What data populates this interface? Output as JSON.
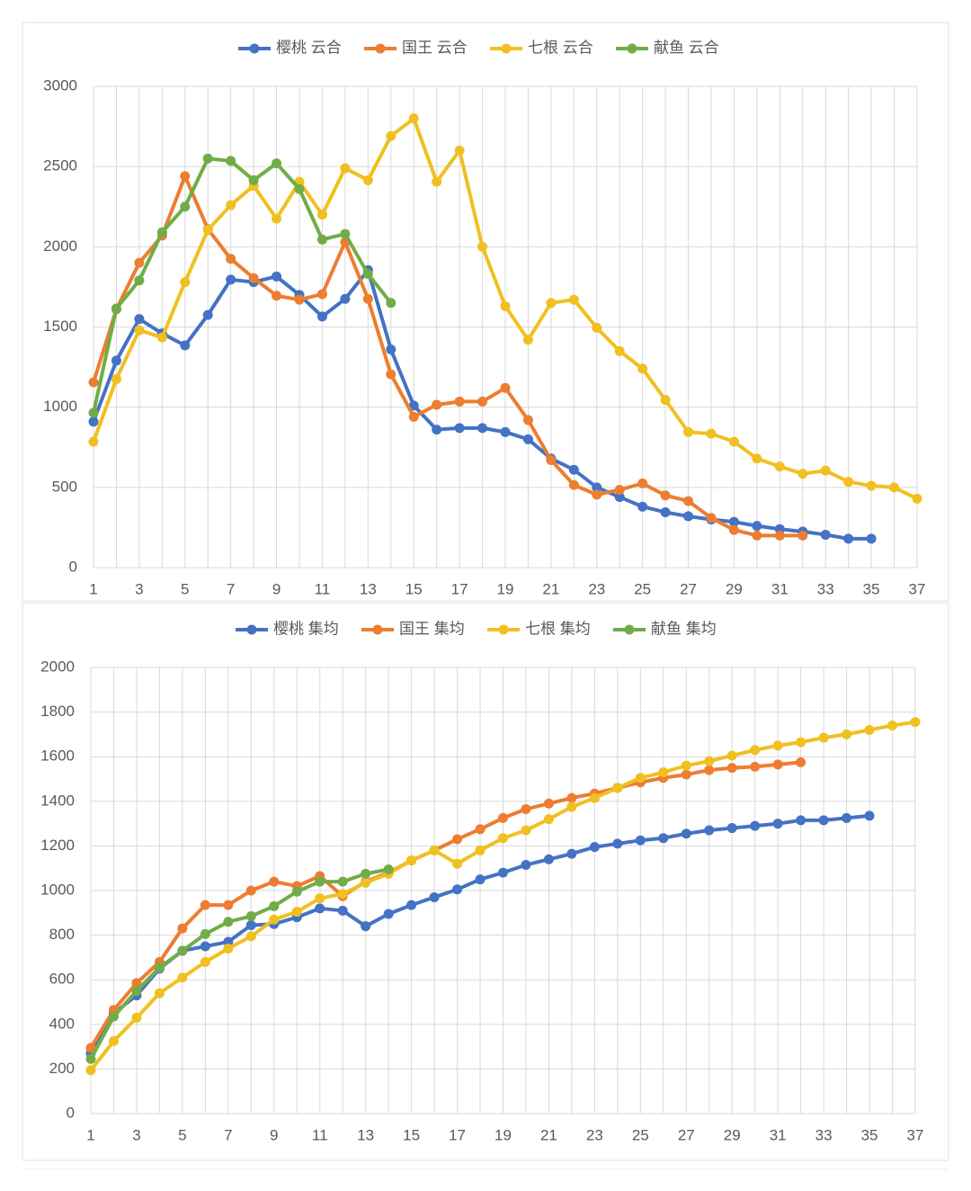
{
  "chart_data": [
    {
      "type": "line",
      "categories": [
        "1",
        null,
        "3",
        null,
        "5",
        null,
        "7",
        null,
        "9",
        null,
        "11",
        null,
        "13",
        null,
        "15",
        null,
        "17",
        null,
        "19",
        null,
        "21",
        null,
        "23",
        null,
        "25",
        null,
        "27",
        null,
        "29",
        null,
        "31",
        null,
        "33",
        null,
        "35",
        null,
        "37"
      ],
      "ylim": [
        0,
        3000
      ],
      "yticks": [
        0,
        500,
        1000,
        1500,
        2000,
        2500,
        3000
      ],
      "grid": true,
      "legend": "top",
      "series": [
        {
          "name": "樱桃 云合",
          "color": "#4472c4",
          "values": [
            910,
            1290,
            1550,
            1460,
            1385,
            1575,
            1795,
            1780,
            1815,
            1700,
            1565,
            1675,
            1855,
            1360,
            1010,
            860,
            870,
            870,
            845,
            800,
            680,
            610,
            500,
            440,
            380,
            345,
            320,
            300,
            285,
            260,
            240,
            225,
            205,
            180,
            180,
            null,
            null
          ]
        },
        {
          "name": "国王 云合",
          "color": "#ed7d31",
          "values": [
            1155,
            1610,
            1900,
            2070,
            2440,
            2110,
            1925,
            1805,
            1695,
            1670,
            1705,
            2030,
            1675,
            1205,
            940,
            1015,
            1035,
            1035,
            1120,
            920,
            670,
            515,
            455,
            485,
            525,
            450,
            415,
            310,
            235,
            200,
            200,
            200,
            null,
            null,
            null,
            null,
            null
          ]
        },
        {
          "name": "七根 云合",
          "color": "#f0c020",
          "values": [
            785,
            1175,
            1480,
            1435,
            1780,
            2105,
            2260,
            2380,
            2175,
            2405,
            2200,
            2490,
            2415,
            2690,
            2800,
            2405,
            2600,
            2000,
            1630,
            1420,
            1650,
            1670,
            1495,
            1350,
            1240,
            1045,
            845,
            835,
            785,
            680,
            630,
            585,
            605,
            535,
            510,
            500,
            430
          ]
        },
        {
          "name": "献鱼 云合",
          "color": "#70ad47",
          "values": [
            965,
            1615,
            1790,
            2090,
            2250,
            2550,
            2535,
            2415,
            2520,
            2360,
            2045,
            2080,
            1830,
            1650,
            null,
            null,
            null,
            null,
            null,
            null,
            null,
            null,
            null,
            null,
            null,
            null,
            null,
            null,
            null,
            null,
            null,
            null,
            null,
            null,
            null,
            null,
            null
          ]
        }
      ]
    },
    {
      "type": "line",
      "categories": [
        "1",
        null,
        "3",
        null,
        "5",
        null,
        "7",
        null,
        "9",
        null,
        "11",
        null,
        "13",
        null,
        "15",
        null,
        "17",
        null,
        "19",
        null,
        "21",
        null,
        "23",
        null,
        "25",
        null,
        "27",
        null,
        "29",
        null,
        "31",
        null,
        "33",
        null,
        "35",
        null,
        "37"
      ],
      "ylim": [
        0,
        2000
      ],
      "yticks": [
        0,
        200,
        400,
        600,
        800,
        1000,
        1200,
        1400,
        1600,
        1800,
        2000
      ],
      "grid": true,
      "legend": "top",
      "series": [
        {
          "name": "樱桃 集均",
          "color": "#4472c4",
          "values": [
            270,
            450,
            530,
            650,
            730,
            750,
            770,
            845,
            850,
            880,
            920,
            910,
            840,
            895,
            935,
            970,
            1005,
            1050,
            1080,
            1115,
            1140,
            1165,
            1195,
            1210,
            1225,
            1235,
            1255,
            1270,
            1280,
            1290,
            1300,
            1315,
            1315,
            1325,
            1335,
            null,
            null
          ]
        },
        {
          "name": "国王 集均",
          "color": "#ed7d31",
          "values": [
            295,
            465,
            585,
            680,
            830,
            935,
            935,
            1000,
            1040,
            1020,
            1065,
            975,
            1040,
            1080,
            1135,
            1180,
            1230,
            1275,
            1325,
            1365,
            1390,
            1415,
            1435,
            1460,
            1485,
            1505,
            1520,
            1540,
            1550,
            1555,
            1565,
            1575,
            null,
            null,
            null,
            null,
            null
          ]
        },
        {
          "name": "七根 集均",
          "color": "#f0c020",
          "values": [
            195,
            325,
            430,
            540,
            610,
            680,
            740,
            795,
            870,
            905,
            965,
            985,
            1035,
            1075,
            1135,
            1180,
            1120,
            1180,
            1235,
            1270,
            1320,
            1375,
            1415,
            1460,
            1505,
            1530,
            1560,
            1580,
            1605,
            1630,
            1650,
            1665,
            1685,
            1700,
            1720,
            1740,
            1755
          ]
        },
        {
          "name": "献鱼 集均",
          "color": "#70ad47",
          "values": [
            245,
            435,
            550,
            655,
            730,
            805,
            860,
            885,
            930,
            995,
            1040,
            1040,
            1075,
            1095,
            null,
            null,
            null,
            null,
            null,
            null,
            null,
            null,
            null,
            null,
            null,
            null,
            null,
            null,
            null,
            null,
            null,
            null,
            null,
            null,
            null,
            null,
            null
          ]
        }
      ]
    }
  ]
}
